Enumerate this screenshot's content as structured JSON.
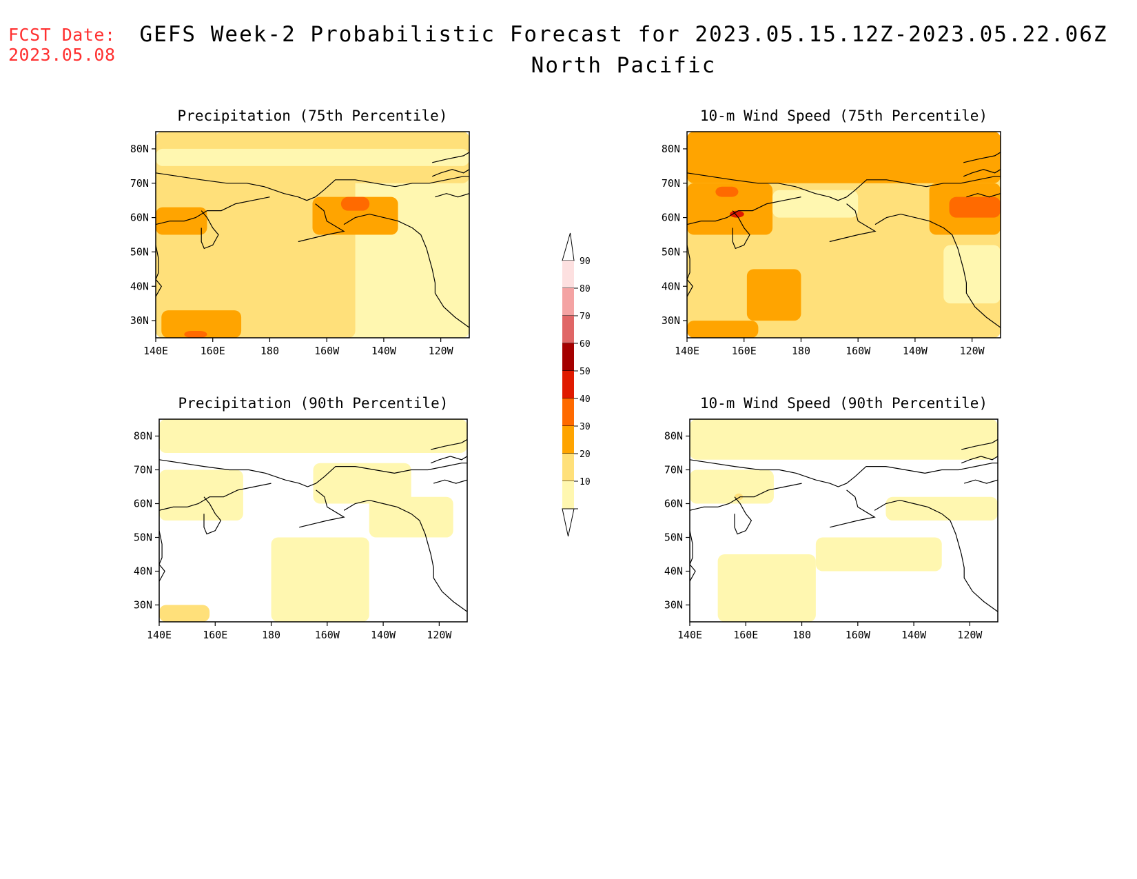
{
  "header": {
    "fcst_label": "FCST Date:",
    "fcst_date": "2023.05.08",
    "title": "GEFS Week-2 Probabilistic Forecast for 2023.05.15.12Z-2023.05.22.06Z",
    "subtitle": "North Pacific"
  },
  "axes": {
    "lon_labels": [
      "140E",
      "160E",
      "180",
      "160W",
      "140W",
      "120W"
    ],
    "lat_labels": [
      "80N",
      "70N",
      "60N",
      "50N",
      "40N",
      "30N"
    ]
  },
  "panels": [
    {
      "id": "precip-75",
      "title": "Precipitation (75th Percentile)"
    },
    {
      "id": "wind-75",
      "title": "10-m Wind Speed (75th Percentile)"
    },
    {
      "id": "precip-90",
      "title": "Precipitation (90th Percentile)"
    },
    {
      "id": "wind-90",
      "title": "10-m Wind Speed (90th Percentile)"
    }
  ],
  "colorbar": {
    "labels": [
      "90",
      "80",
      "70",
      "60",
      "50",
      "40",
      "30",
      "20",
      "10"
    ],
    "colors": [
      "#fde0e0",
      "#f4a3a3",
      "#e06666",
      "#a50000",
      "#e01a00",
      "#ff6a00",
      "#ffa400",
      "#ffe07a",
      "#fff7b0"
    ]
  },
  "legend_colors": {
    "c10": "#fff7b0",
    "c20": "#ffe07a",
    "c30": "#ffa400",
    "c40": "#ff6a00",
    "c50": "#e01a00",
    "c60": "#a50000",
    "c_none": "#ffffff"
  }
}
